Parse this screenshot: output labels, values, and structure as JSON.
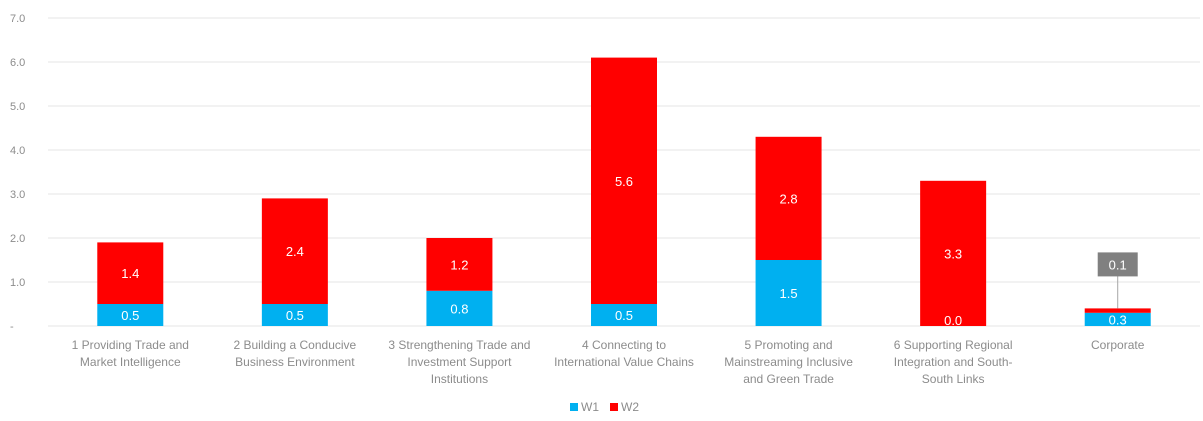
{
  "chart_data": {
    "type": "bar",
    "stacked": true,
    "categories": [
      [
        "1 Providing Trade and",
        "Market Intelligence"
      ],
      [
        "2 Building a Conducive",
        "Business Environment"
      ],
      [
        "3 Strengthening Trade and",
        "Investment Support",
        "Institutions"
      ],
      [
        "4 Connecting to",
        "International Value Chains"
      ],
      [
        "5 Promoting and",
        "Mainstreaming Inclusive",
        "and Green Trade"
      ],
      [
        "6 Supporting Regional",
        "Integration and South-",
        "South Links"
      ],
      [
        "Corporate"
      ]
    ],
    "series": [
      {
        "name": "W1",
        "color": "#00b0f0",
        "values": [
          0.5,
          0.5,
          0.8,
          0.5,
          1.5,
          0.0,
          0.3
        ]
      },
      {
        "name": "W2",
        "color": "#ff0000",
        "values": [
          1.4,
          2.4,
          1.2,
          5.6,
          2.8,
          3.3,
          0.1
        ]
      }
    ],
    "data_labels": {
      "W1": [
        "0.5",
        "0.5",
        "0.8",
        "0.5",
        "1.5",
        "",
        "0.3"
      ],
      "W2": [
        "1.4",
        "2.4",
        "1.2",
        "5.6",
        "2.8",
        "3.3",
        "0.1"
      ],
      "extra": {
        "category_index": 5,
        "text": "0.0"
      }
    },
    "callout_color": "#808080",
    "ylim": [
      0,
      7
    ],
    "yticks": [
      "-",
      "1.0",
      "2.0",
      "3.0",
      "4.0",
      "5.0",
      "6.0",
      "7.0"
    ],
    "title": "",
    "xlabel": "",
    "ylabel": "",
    "grid": true,
    "legend_position": "bottom",
    "gridline_color": "#e6e6e6"
  }
}
